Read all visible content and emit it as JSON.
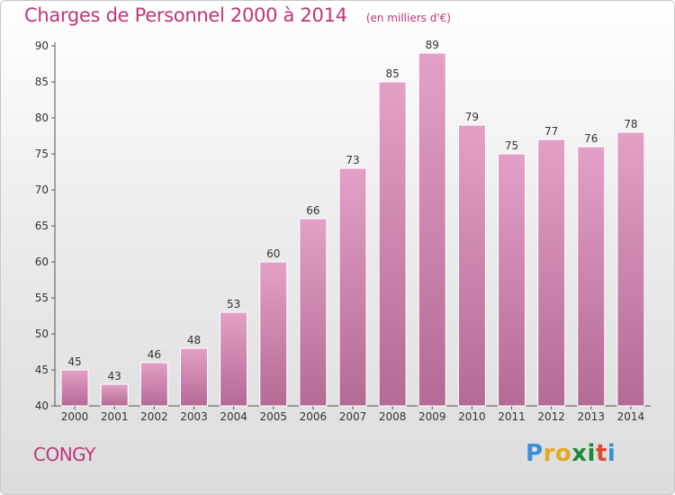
{
  "chart_data": {
    "type": "bar",
    "title": "Charges de Personnel 2000 à 2014",
    "subtitle": "(en milliers d'€)",
    "xlabel": "",
    "ylabel": "",
    "categories": [
      "2000",
      "2001",
      "2002",
      "2003",
      "2004",
      "2005",
      "2006",
      "2007",
      "2008",
      "2009",
      "2010",
      "2011",
      "2012",
      "2013",
      "2014"
    ],
    "values": [
      45,
      43,
      46,
      48,
      53,
      60,
      66,
      73,
      85,
      89,
      79,
      75,
      77,
      76,
      78
    ],
    "ylim": [
      40,
      90
    ],
    "yticks": [
      "40",
      "45",
      "50",
      "55",
      "60",
      "65",
      "70",
      "75",
      "80",
      "85",
      "90"
    ],
    "grid": false,
    "bar_color": "#e3a0c6",
    "bar_color_dark": "#b46a95"
  },
  "footer": {
    "commune": "CONGY",
    "logo": [
      "P",
      "r",
      "o",
      "x",
      "i",
      "t",
      "i"
    ],
    "logo_colors": [
      "#3a8ed8",
      "#e8a81c",
      "#e8a81c",
      "#1c8a3c",
      "#1c8a3c",
      "#e04a2a",
      "#3a8ed8"
    ]
  }
}
